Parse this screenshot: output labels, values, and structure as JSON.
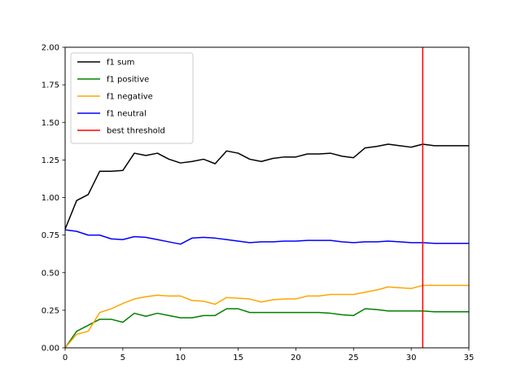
{
  "chart_data": {
    "type": "line",
    "title": "",
    "xlabel": "",
    "ylabel": "",
    "xlim": [
      0,
      35
    ],
    "ylim": [
      0,
      2.0
    ],
    "xticks": [
      0,
      5,
      10,
      15,
      20,
      25,
      30,
      35
    ],
    "yticks": [
      0.0,
      0.25,
      0.5,
      0.75,
      1.0,
      1.25,
      1.5,
      1.75,
      2.0
    ],
    "xtick_labels": [
      "0",
      "5",
      "10",
      "15",
      "20",
      "25",
      "30",
      "35"
    ],
    "ytick_labels": [
      "0.00",
      "0.25",
      "0.50",
      "0.75",
      "1.00",
      "1.25",
      "1.50",
      "1.75",
      "2.00"
    ],
    "grid": false,
    "legend_position": "top-left",
    "x": [
      0,
      1,
      2,
      3,
      4,
      5,
      6,
      7,
      8,
      9,
      10,
      11,
      12,
      13,
      14,
      15,
      16,
      17,
      18,
      19,
      20,
      21,
      22,
      23,
      24,
      25,
      26,
      27,
      28,
      29,
      30,
      31,
      32,
      33,
      34,
      35
    ],
    "series": [
      {
        "name": "f1 sum",
        "color": "#000000",
        "values": [
          0.79,
          0.98,
          1.02,
          1.175,
          1.175,
          1.18,
          1.295,
          1.28,
          1.295,
          1.255,
          1.23,
          1.24,
          1.255,
          1.225,
          1.31,
          1.295,
          1.255,
          1.24,
          1.26,
          1.27,
          1.27,
          1.29,
          1.29,
          1.295,
          1.275,
          1.265,
          1.33,
          1.34,
          1.355,
          1.345,
          1.335,
          1.355,
          1.345,
          1.345,
          1.345,
          1.345
        ]
      },
      {
        "name": "f1 positive",
        "color": "#008000",
        "values": [
          0.0,
          0.11,
          0.15,
          0.19,
          0.19,
          0.17,
          0.23,
          0.21,
          0.23,
          0.215,
          0.2,
          0.2,
          0.215,
          0.215,
          0.26,
          0.26,
          0.235,
          0.235,
          0.235,
          0.235,
          0.235,
          0.235,
          0.235,
          0.23,
          0.22,
          0.215,
          0.26,
          0.255,
          0.245,
          0.245,
          0.245,
          0.245,
          0.24,
          0.24,
          0.24,
          0.24
        ]
      },
      {
        "name": "f1 negative",
        "color": "#ffa500",
        "values": [
          0.0,
          0.09,
          0.11,
          0.235,
          0.26,
          0.295,
          0.325,
          0.34,
          0.35,
          0.345,
          0.345,
          0.315,
          0.31,
          0.29,
          0.335,
          0.33,
          0.325,
          0.305,
          0.32,
          0.325,
          0.325,
          0.345,
          0.345,
          0.355,
          0.355,
          0.355,
          0.37,
          0.385,
          0.405,
          0.4,
          0.395,
          0.415,
          0.415,
          0.415,
          0.415,
          0.415
        ]
      },
      {
        "name": "f1 neutral",
        "color": "#0000ff",
        "values": [
          0.785,
          0.775,
          0.75,
          0.75,
          0.725,
          0.72,
          0.74,
          0.735,
          0.72,
          0.705,
          0.69,
          0.73,
          0.735,
          0.73,
          0.72,
          0.71,
          0.7,
          0.705,
          0.705,
          0.71,
          0.71,
          0.715,
          0.715,
          0.715,
          0.705,
          0.7,
          0.705,
          0.705,
          0.71,
          0.705,
          0.7,
          0.7,
          0.695,
          0.695,
          0.695,
          0.695
        ]
      }
    ],
    "vlines": [
      {
        "name": "best threshold",
        "color": "#ff0000",
        "x": 31
      }
    ]
  }
}
